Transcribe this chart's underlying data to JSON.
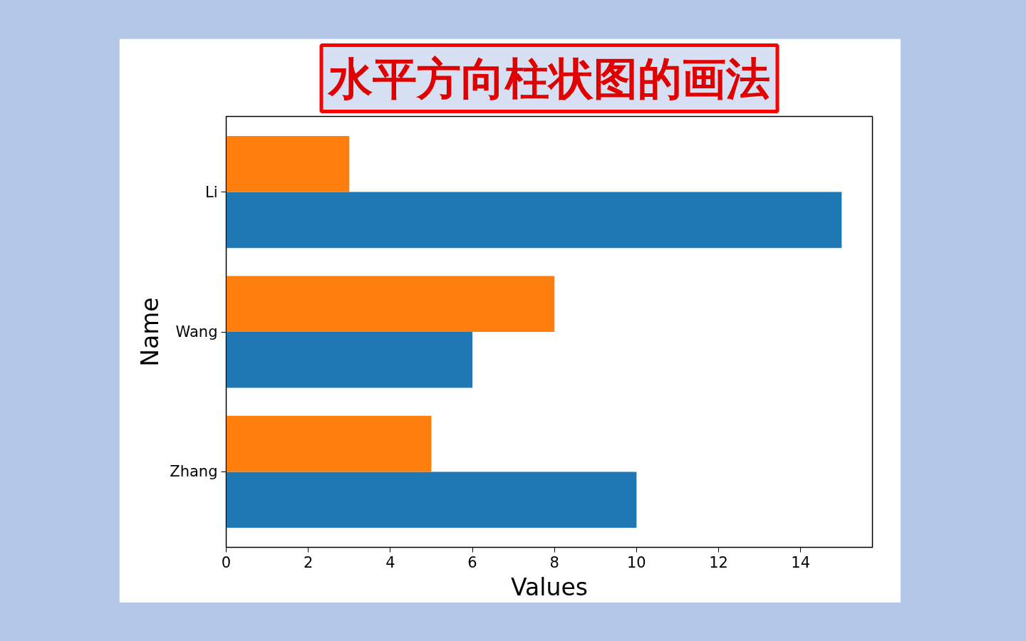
{
  "chart_data": {
    "type": "bar",
    "orientation": "horizontal",
    "title": "水平方向柱状图的画法",
    "xlabel": "Values",
    "ylabel": "Name",
    "categories": [
      "Li",
      "Wang",
      "Zhang"
    ],
    "series": [
      {
        "color": "#1f77b4",
        "values": [
          15,
          6,
          10
        ]
      },
      {
        "color": "#ff7f0e",
        "values": [
          3,
          8,
          5
        ]
      }
    ],
    "xlim": [
      0,
      15.75
    ],
    "xticks": [
      0,
      2,
      4,
      6,
      8,
      10,
      12,
      14
    ]
  }
}
